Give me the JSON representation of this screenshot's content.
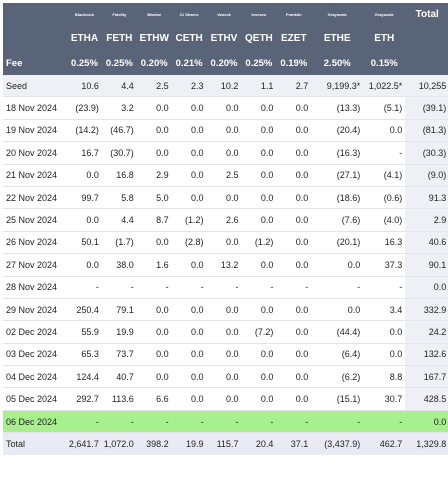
{
  "issuers": [
    "Blackrock",
    "Fidelity",
    "Bitwise",
    "21 Shares",
    "Vaneck",
    "Invesco",
    "Franklin",
    "Grayscale",
    "Grayscale"
  ],
  "total_label": "Total",
  "tickers": [
    "ETHA",
    "FETH",
    "ETHW",
    "CETH",
    "ETHV",
    "QETH",
    "EZET",
    "ETHE",
    "ETH"
  ],
  "fee_label": "Fee",
  "fees": [
    "0.25%",
    "0.25%",
    "0.20%",
    "0.21%",
    "0.20%",
    "0.25%",
    "0.19%",
    "2.50%",
    "0.15%"
  ],
  "rows": [
    {
      "label": "Seed",
      "cells": [
        "10.6",
        "4.4",
        "2.5",
        "2.3",
        "10.2",
        "1.1",
        "2.7",
        "9,199.3*",
        "1,022.5*",
        "10,255"
      ]
    },
    {
      "label": "18 Nov 2024",
      "cells": [
        "(23.9)",
        "3.2",
        "0.0",
        "0.0",
        "0.0",
        "0.0",
        "0.0",
        "(13.3)",
        "(5.1)",
        "(39.1)"
      ]
    },
    {
      "label": "19 Nov 2024",
      "cells": [
        "(14.2)",
        "(46.7)",
        "0.0",
        "0.0",
        "0.0",
        "0.0",
        "0.0",
        "(20.4)",
        "0.0",
        "(81.3)"
      ]
    },
    {
      "label": "20 Nov 2024",
      "cells": [
        "16.7",
        "(30.7)",
        "0.0",
        "0.0",
        "0.0",
        "0.0",
        "0.0",
        "(16.3)",
        "-",
        "(30.3)"
      ]
    },
    {
      "label": "21 Nov 2024",
      "cells": [
        "0.0",
        "16.8",
        "2.9",
        "0.0",
        "2.5",
        "0.0",
        "0.0",
        "(27.1)",
        "(4.1)",
        "(9.0)"
      ]
    },
    {
      "label": "22 Nov 2024",
      "cells": [
        "99.7",
        "5.8",
        "5.0",
        "0.0",
        "0.0",
        "0.0",
        "0.0",
        "(18.6)",
        "(0.6)",
        "91.3"
      ]
    },
    {
      "label": "25 Nov 2024",
      "cells": [
        "0.0",
        "4.4",
        "8.7",
        "(1.2)",
        "2.6",
        "0.0",
        "0.0",
        "(7.6)",
        "(4.0)",
        "2.9"
      ]
    },
    {
      "label": "26 Nov 2024",
      "cells": [
        "50.1",
        "(1.7)",
        "0.0",
        "(2.8)",
        "0.0",
        "(1.2)",
        "0.0",
        "(20.1)",
        "16.3",
        "40.6"
      ]
    },
    {
      "label": "27 Nov 2024",
      "cells": [
        "0.0",
        "38.0",
        "1.6",
        "0.0",
        "13.2",
        "0.0",
        "0.0",
        "0.0",
        "37.3",
        "90.1"
      ]
    },
    {
      "label": "28 Nov 2024",
      "cells": [
        "-",
        "-",
        "-",
        "-",
        "-",
        "-",
        "-",
        "-",
        "-",
        "0.0"
      ]
    },
    {
      "label": "29 Nov 2024",
      "cells": [
        "250.4",
        "79.1",
        "0.0",
        "0.0",
        "0.0",
        "0.0",
        "0.0",
        "0.0",
        "3.4",
        "332.9"
      ]
    },
    {
      "label": "02 Dec 2024",
      "cells": [
        "55.9",
        "19.9",
        "0.0",
        "0.0",
        "0.0",
        "(7.2)",
        "0.0",
        "(44.4)",
        "0.0",
        "24.2"
      ]
    },
    {
      "label": "03 Dec 2024",
      "cells": [
        "65.3",
        "73.7",
        "0.0",
        "0.0",
        "0.0",
        "0.0",
        "0.0",
        "(6.4)",
        "0.0",
        "132.6"
      ]
    },
    {
      "label": "04 Dec 2024",
      "cells": [
        "124.4",
        "40.7",
        "0.0",
        "0.0",
        "0.0",
        "0.0",
        "0.0",
        "(6.2)",
        "8.8",
        "167.7"
      ]
    },
    {
      "label": "05 Dec 2024",
      "cells": [
        "292.7",
        "113.6",
        "6.6",
        "0.0",
        "0.0",
        "0.0",
        "0.0",
        "(15.1)",
        "30.7",
        "428.5"
      ]
    },
    {
      "label": "06 Dec 2024",
      "cells": [
        "-",
        "-",
        "-",
        "-",
        "-",
        "-",
        "-",
        "-",
        "-",
        "0.0"
      ]
    },
    {
      "label": "Total",
      "cells": [
        "2,641.7",
        "1,072.0",
        "398.2",
        "19.9",
        "115.7",
        "20.4",
        "37.1",
        "(3,437.9)",
        "462.7",
        "1,329.8"
      ]
    }
  ],
  "colors": {
    "header_bg": "#5a6478",
    "negative": "#e0241c",
    "highlight": "#a8ef8e",
    "stripe": "#eef0f6"
  }
}
